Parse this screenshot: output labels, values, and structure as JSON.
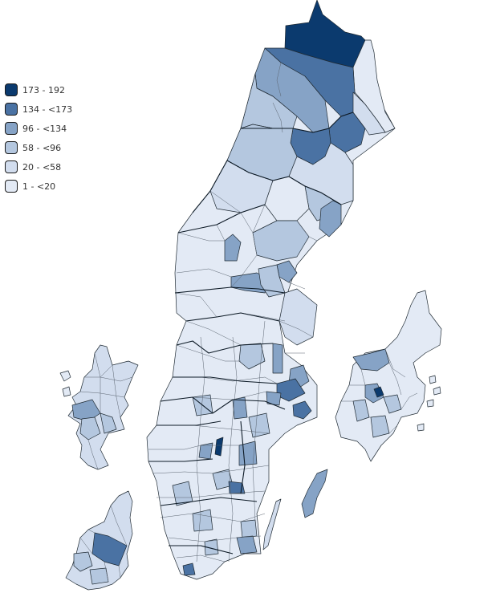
{
  "legend": {
    "items": [
      {
        "label": "173 - 192",
        "color": "#0b3a6e"
      },
      {
        "label": "134 - <173",
        "color": "#4a72a3"
      },
      {
        "label": "96 - <134",
        "color": "#86a3c6"
      },
      {
        "label": "58 - <96",
        "color": "#b4c7df"
      },
      {
        "label": "20 - <58",
        "color": "#d2ddee"
      },
      {
        "label": "1 - <20",
        "color": "#e3eaf5"
      }
    ]
  },
  "map": {
    "colors": {
      "c1": "#0b3a6e",
      "c2": "#4a72a3",
      "c3": "#86a3c6",
      "c4": "#b4c7df",
      "c5": "#d2ddee",
      "c6": "#e3eaf5"
    }
  }
}
